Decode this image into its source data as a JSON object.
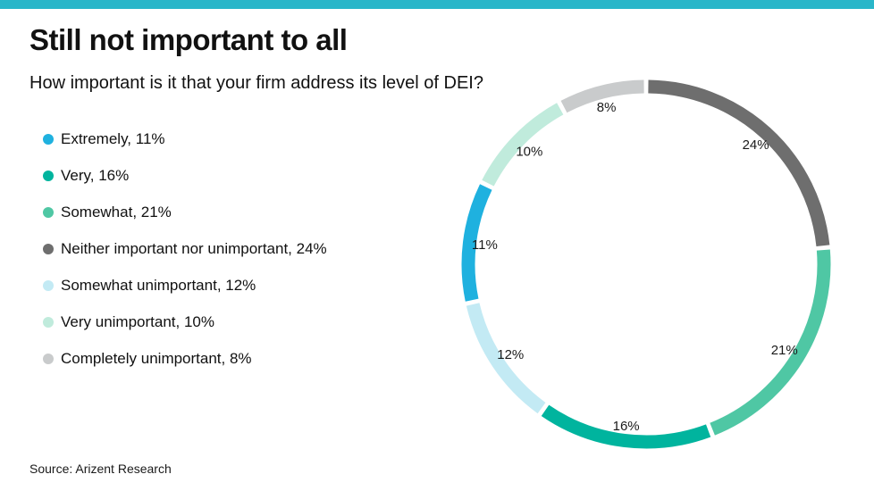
{
  "page": {
    "accent_color": "#29B6C9",
    "title": "Still not important to all",
    "subtitle": "How important is it that your firm address its level of DEI?",
    "source": "Source: Arizent Research"
  },
  "legend": {
    "items": [
      {
        "label": "Extremely, 11%",
        "color": "#1FB1DF"
      },
      {
        "label": "Very, 16%",
        "color": "#00B49E"
      },
      {
        "label": "Somewhat, 21%",
        "color": "#4FC7A4"
      },
      {
        "label": "Neither important nor unimportant, 24%",
        "color": "#6E6E6E"
      },
      {
        "label": "Somewhat unimportant, 12%",
        "color": "#C3EAF4"
      },
      {
        "label": "Very unimportant, 10%",
        "color": "#C0EBDC"
      },
      {
        "label": "Completely unimportant, 8%",
        "color": "#C9CBCC"
      }
    ]
  },
  "chart_data": {
    "type": "pie",
    "title": "Still not important to all",
    "subtitle": "How important is it that your firm address its level of DEI?",
    "donut": true,
    "direction": "clockwise",
    "start_angle_deg": 0,
    "legend_position": "left",
    "categories": [
      "Extremely",
      "Very",
      "Somewhat",
      "Neither important nor unimportant",
      "Somewhat unimportant",
      "Very unimportant",
      "Completely unimportant"
    ],
    "values": [
      11,
      16,
      21,
      24,
      12,
      10,
      8
    ],
    "value_labels": [
      "11%",
      "16%",
      "21%",
      "24%",
      "12%",
      "10%",
      "8%"
    ],
    "segments": [
      {
        "label": "Neither important nor unimportant",
        "pct": 24,
        "color": "#6E6E6E"
      },
      {
        "label": "Somewhat",
        "pct": 21,
        "color": "#4FC7A4"
      },
      {
        "label": "Very",
        "pct": 16,
        "color": "#00B49E"
      },
      {
        "label": "Somewhat unimportant",
        "pct": 12,
        "color": "#C3EAF4"
      },
      {
        "label": "Extremely",
        "pct": 11,
        "color": "#1FB1DF"
      },
      {
        "label": "Very unimportant",
        "pct": 10,
        "color": "#C0EBDC"
      },
      {
        "label": "Completely unimportant",
        "pct": 8,
        "color": "#C9CBCC"
      }
    ],
    "source": "Source: Arizent Research"
  }
}
